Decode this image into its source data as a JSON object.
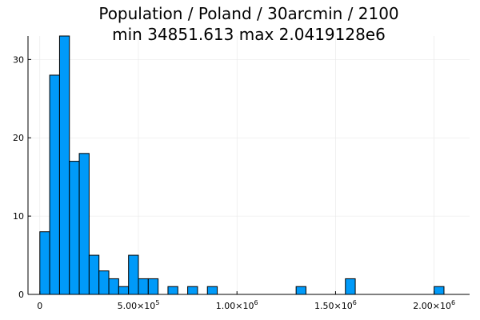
{
  "chart_data": {
    "type": "bar",
    "title": "Population / Poland / 30arcmin / 2100",
    "subtitle": "min 34851.613  max 2.0419128e6",
    "xlabel": "",
    "ylabel": "",
    "bin_width": 50000,
    "bin_starts": [
      0,
      50000,
      100000,
      150000,
      200000,
      250000,
      300000,
      350000,
      400000,
      450000,
      500000,
      550000,
      650000,
      750000,
      850000,
      1300000,
      1550000,
      2000000
    ],
    "values": [
      8,
      28,
      33,
      17,
      18,
      5,
      3,
      2,
      1,
      5,
      2,
      2,
      1,
      1,
      1,
      1,
      2,
      1
    ],
    "xlim": [
      -60000,
      2180000
    ],
    "ylim": [
      0,
      33
    ],
    "x_ticks": [
      {
        "value": 0,
        "base": "0",
        "exp": ""
      },
      {
        "value": 500000,
        "base": "5.00×10",
        "exp": "5"
      },
      {
        "value": 1000000,
        "base": "1.00×10",
        "exp": "6"
      },
      {
        "value": 1500000,
        "base": "1.50×10",
        "exp": "6"
      },
      {
        "value": 2000000,
        "base": "2.00×10",
        "exp": "6"
      }
    ],
    "y_ticks": [
      {
        "value": 0,
        "label": "0"
      },
      {
        "value": 10,
        "label": "10"
      },
      {
        "value": 20,
        "label": "20"
      },
      {
        "value": 30,
        "label": "30"
      }
    ],
    "grid": true,
    "legend": "none",
    "bar_color": "#009af9"
  }
}
